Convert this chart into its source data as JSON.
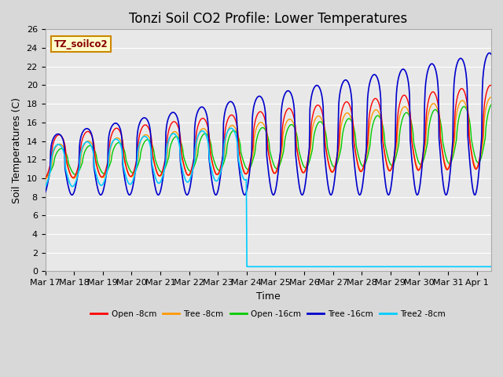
{
  "title": "Tonzi Soil CO2 Profile: Lower Temperatures",
  "xlabel": "Time",
  "ylabel": "Soil Temperatures (C)",
  "ylim": [
    0,
    26
  ],
  "yticks": [
    0,
    2,
    4,
    6,
    8,
    10,
    12,
    14,
    16,
    18,
    20,
    22,
    24,
    26
  ],
  "xtick_labels": [
    "Mar 17",
    "Mar 18",
    "Mar 19",
    "Mar 20",
    "Mar 21",
    "Mar 22",
    "Mar 23",
    "Mar 24",
    "Mar 25",
    "Mar 26",
    "Mar 27",
    "Mar 28",
    "Mar 29",
    "Mar 30",
    "Mar 31",
    "Apr 1"
  ],
  "legend_label": "TZ_soilco2",
  "legend_bg": "#ffffcc",
  "legend_border": "#cc8800",
  "series_labels": [
    "Open -8cm",
    "Tree -8cm",
    "Open -16cm",
    "Tree -16cm",
    "Tree2 -8cm"
  ],
  "series_colors": [
    "#ff0000",
    "#ff9900",
    "#00cc00",
    "#0000cc",
    "#00ccff"
  ],
  "fig_bg": "#d8d8d8",
  "plot_bg": "#e8e8e8",
  "title_fontsize": 12,
  "axis_fontsize": 9,
  "tick_fontsize": 8
}
